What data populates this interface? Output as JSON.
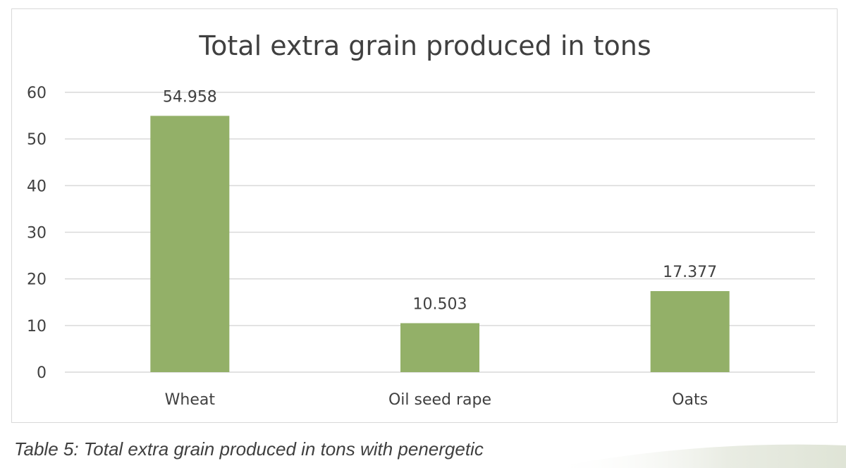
{
  "chart_data": {
    "type": "bar",
    "title": "Total extra grain produced in tons",
    "categories": [
      "Wheat",
      "Oil seed rape",
      "Oats"
    ],
    "values": [
      54.958,
      10.503,
      17.377
    ],
    "data_labels": [
      "54.958",
      "10.503",
      "17.377"
    ],
    "xlabel": "",
    "ylabel": "",
    "ylim": [
      0,
      60
    ],
    "yticks": [
      0,
      10,
      20,
      30,
      40,
      50,
      60
    ],
    "grid": true,
    "legend": "none",
    "bar_color": "#93b068",
    "grid_color": "#d9d9d9"
  },
  "caption": "Table 5: Total extra grain produced in tons with penergetic"
}
